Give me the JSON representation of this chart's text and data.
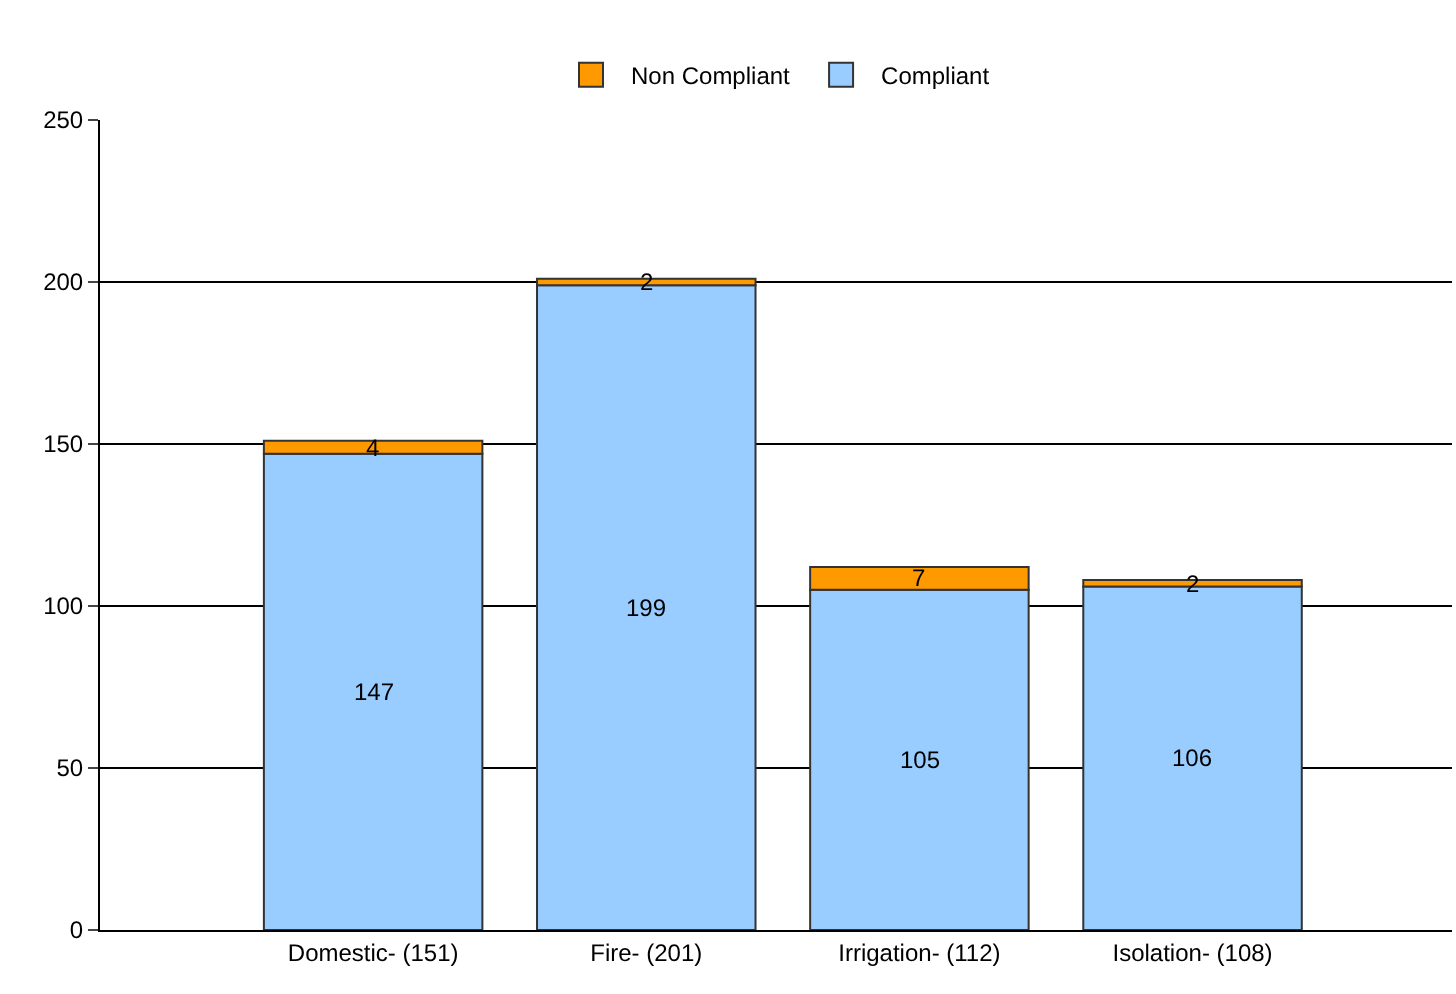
{
  "chart_data": {
    "type": "bar",
    "stacked": true,
    "categories": [
      "Domestic- (151)",
      "Fire- (201)",
      "Irrigation- (112)",
      "Isolation- (108)"
    ],
    "series": [
      {
        "name": "Compliant",
        "color": "#99ccff",
        "values": [
          147,
          199,
          105,
          106
        ]
      },
      {
        "name": "Non Compliant",
        "color": "#ff9900",
        "values": [
          4,
          2,
          7,
          2
        ]
      }
    ],
    "ylim": [
      0,
      250
    ],
    "yticks": [
      0,
      50,
      100,
      150,
      200,
      250
    ],
    "grid": "y",
    "legend": "top",
    "data_labels": true
  }
}
